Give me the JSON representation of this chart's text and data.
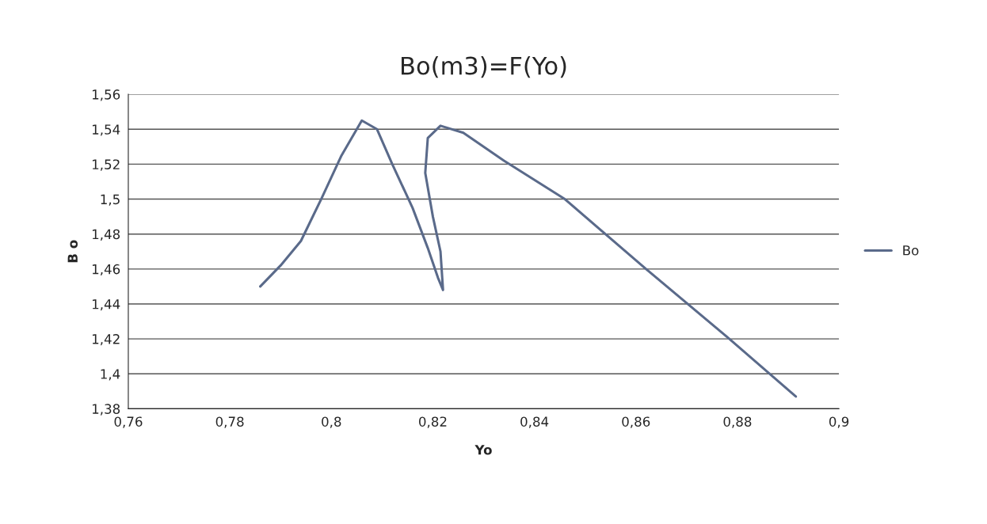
{
  "chart_data": {
    "type": "line",
    "title": "Bo(m3)=F(Yo)",
    "xlabel": "Yo",
    "ylabel": "B o",
    "series": [
      {
        "name": "Bo",
        "color": "#5a6a8a",
        "x": [
          0.786,
          0.79,
          0.794,
          0.798,
          0.802,
          0.806,
          0.809,
          0.812,
          0.816,
          0.819,
          0.821,
          0.822,
          0.8215,
          0.82,
          0.8185,
          0.819,
          0.8215,
          0.826,
          0.834,
          0.846,
          0.862,
          0.878,
          0.8915
        ],
        "values": [
          1.45,
          1.462,
          1.476,
          1.5,
          1.525,
          1.545,
          1.54,
          1.52,
          1.495,
          1.472,
          1.455,
          1.448,
          1.47,
          1.49,
          1.515,
          1.535,
          1.542,
          1.538,
          1.522,
          1.5,
          1.46,
          1.421,
          1.387
        ]
      }
    ],
    "xlim": [
      0.76,
      0.9
    ],
    "xticks": [
      {
        "value": 0.76,
        "label": "0,76"
      },
      {
        "value": 0.78,
        "label": "0,78"
      },
      {
        "value": 0.8,
        "label": "0,8"
      },
      {
        "value": 0.82,
        "label": "0,82"
      },
      {
        "value": 0.84,
        "label": "0,84"
      },
      {
        "value": 0.86,
        "label": "0,86"
      },
      {
        "value": 0.88,
        "label": "0,88"
      },
      {
        "value": 0.9,
        "label": "0,9"
      }
    ],
    "ylim": [
      1.38,
      1.56
    ],
    "yticks": [
      {
        "value": 1.38,
        "label": "1,38"
      },
      {
        "value": 1.4,
        "label": "1,4"
      },
      {
        "value": 1.42,
        "label": "1,42"
      },
      {
        "value": 1.44,
        "label": "1,44"
      },
      {
        "value": 1.46,
        "label": "1,46"
      },
      {
        "value": 1.48,
        "label": "1,48"
      },
      {
        "value": 1.5,
        "label": "1,5"
      },
      {
        "value": 1.52,
        "label": "1,52"
      },
      {
        "value": 1.54,
        "label": "1,54"
      },
      {
        "value": 1.56,
        "label": "1,56"
      }
    ],
    "grid": "y",
    "legend": "right",
    "marker": "none",
    "line_style": "solid"
  }
}
